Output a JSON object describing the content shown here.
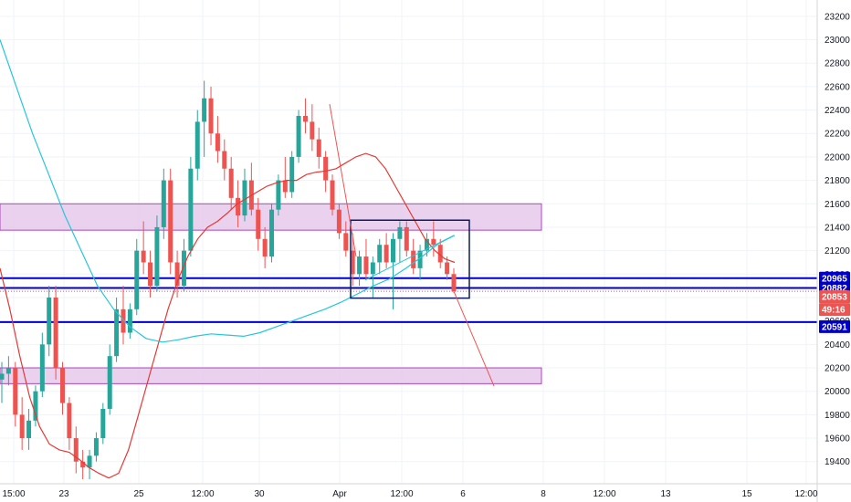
{
  "chart_data": {
    "type": "candlestick",
    "ylim": [
      19250,
      23300
    ],
    "y_ticks": [
      19400,
      19600,
      19800,
      20000,
      20200,
      20400,
      20600,
      20800,
      21000,
      21200,
      21400,
      21600,
      21800,
      22000,
      22200,
      22400,
      22600,
      22800,
      23000,
      23200
    ],
    "x_ticks": [
      "15:00",
      "23",
      "25",
      "12:00",
      "30",
      "Apr",
      "12:00",
      "6",
      "8",
      "12:00",
      "13",
      "15",
      "12:00"
    ],
    "grid": true,
    "price_badges": [
      {
        "label": "20965",
        "color": "#0000c8"
      },
      {
        "label": "20882",
        "color": "#0000c8"
      },
      {
        "label": "20853",
        "color": "#ef5350"
      },
      {
        "label": "49:16",
        "color": "#ef5350"
      },
      {
        "label": "20591",
        "color": "#0000c8"
      }
    ],
    "horizontal_levels": [
      20965,
      20882,
      20591
    ],
    "current_price": 20853,
    "zones": [
      {
        "from": 21375,
        "to": 21600,
        "color": "#e1bee7"
      },
      {
        "from": 20065,
        "to": 20200,
        "color": "#e1bee7"
      }
    ],
    "range_box": {
      "high": 21460,
      "low": 20795
    },
    "candles": [
      [
        20100,
        20250,
        19900,
        20150
      ],
      [
        20150,
        20300,
        20050,
        20200
      ],
      [
        20200,
        20250,
        19700,
        19800
      ],
      [
        19800,
        19950,
        19500,
        19600
      ],
      [
        19600,
        19850,
        19500,
        19750
      ],
      [
        19750,
        20050,
        19700,
        20000
      ],
      [
        20000,
        20500,
        19950,
        20400
      ],
      [
        20400,
        20900,
        20300,
        20800
      ],
      [
        20800,
        20900,
        20100,
        20200
      ],
      [
        20200,
        20250,
        19800,
        19900
      ],
      [
        19900,
        19950,
        19500,
        19600
      ],
      [
        19600,
        19700,
        19300,
        19400
      ],
      [
        19400,
        19500,
        19250,
        19350
      ],
      [
        19350,
        19500,
        19250,
        19450
      ],
      [
        19450,
        19650,
        19400,
        19600
      ],
      [
        19600,
        19900,
        19550,
        19850
      ],
      [
        19850,
        20400,
        19800,
        20300
      ],
      [
        20300,
        20800,
        20250,
        20700
      ],
      [
        20700,
        20900,
        20400,
        20500
      ],
      [
        20500,
        20750,
        20450,
        20700
      ],
      [
        20700,
        21300,
        20650,
        21200
      ],
      [
        21200,
        21450,
        21000,
        21100
      ],
      [
        21100,
        21200,
        20800,
        20900
      ],
      [
        20900,
        21500,
        20850,
        21400
      ],
      [
        21400,
        21900,
        21300,
        21800
      ],
      [
        21800,
        21900,
        21000,
        21100
      ],
      [
        21100,
        21200,
        20800,
        20900
      ],
      [
        20900,
        21300,
        20850,
        21200
      ],
      [
        21200,
        22000,
        21150,
        21900
      ],
      [
        21900,
        22400,
        21800,
        22300
      ],
      [
        22300,
        22650,
        22000,
        22500
      ],
      [
        22500,
        22600,
        22100,
        22200
      ],
      [
        22200,
        22350,
        21950,
        22050
      ],
      [
        22050,
        22150,
        21800,
        21900
      ],
      [
        21900,
        22000,
        21550,
        21650
      ],
      [
        21650,
        21800,
        21400,
        21500
      ],
      [
        21500,
        21900,
        21450,
        21800
      ],
      [
        21800,
        21950,
        21500,
        21550
      ],
      [
        21550,
        21650,
        21200,
        21300
      ],
      [
        21300,
        21400,
        21050,
        21150
      ],
      [
        21150,
        21600,
        21100,
        21550
      ],
      [
        21550,
        21850,
        21500,
        21800
      ],
      [
        21800,
        22000,
        21650,
        21700
      ],
      [
        21700,
        22050,
        21650,
        22000
      ],
      [
        22000,
        22400,
        21950,
        22350
      ],
      [
        22350,
        22500,
        22200,
        22300
      ],
      [
        22300,
        22450,
        22050,
        22150
      ],
      [
        22150,
        22250,
        21900,
        22000
      ],
      [
        22000,
        22050,
        21700,
        21800
      ],
      [
        21800,
        21850,
        21500,
        21550
      ],
      [
        21550,
        21600,
        21300,
        21350
      ],
      [
        21350,
        21450,
        21150,
        21200
      ],
      [
        21200,
        21350,
        20900,
        21000
      ],
      [
        21000,
        21200,
        20900,
        21150
      ],
      [
        21150,
        21300,
        20950,
        21000
      ],
      [
        21000,
        21150,
        20800,
        21100
      ],
      [
        21100,
        21300,
        21000,
        21250
      ],
      [
        21250,
        21350,
        21050,
        21100
      ],
      [
        21100,
        21350,
        20700,
        21300
      ],
      [
        21300,
        21450,
        21100,
        21400
      ],
      [
        21400,
        21450,
        21150,
        21200
      ],
      [
        21200,
        21300,
        21000,
        21050
      ],
      [
        21050,
        21250,
        20950,
        21200
      ],
      [
        21200,
        21350,
        21150,
        21300
      ],
      [
        21300,
        21450,
        21150,
        21250
      ],
      [
        21250,
        21300,
        21050,
        21100
      ],
      [
        21100,
        21150,
        20950,
        21000
      ],
      [
        21000,
        21050,
        20840,
        20853
      ]
    ],
    "ma_red": [
      21050,
      20700,
      20300,
      19950,
      19700,
      19550,
      19500,
      19480,
      19420,
      19350,
      19300,
      19260,
      19300,
      19500,
      19800,
      20100,
      20400,
      20700,
      20950,
      21150,
      21300,
      21400,
      21450,
      21520,
      21600,
      21650,
      21700,
      21750,
      21780,
      21800,
      21800,
      21850,
      21870,
      21880,
      21900,
      21950,
      22000,
      22030,
      22000,
      21900,
      21750,
      21600,
      21450,
      21300,
      21200,
      21130,
      21100
    ],
    "ma_teal": [
      23000,
      22600,
      22200,
      21850,
      21500,
      21200,
      20900,
      20700,
      20550,
      20450,
      20420,
      20440,
      20470,
      20490,
      20480,
      20470,
      20500,
      20550,
      20600,
      20650,
      20700,
      20760,
      20830,
      20900,
      20960,
      21050,
      21150,
      21260,
      21330
    ]
  }
}
